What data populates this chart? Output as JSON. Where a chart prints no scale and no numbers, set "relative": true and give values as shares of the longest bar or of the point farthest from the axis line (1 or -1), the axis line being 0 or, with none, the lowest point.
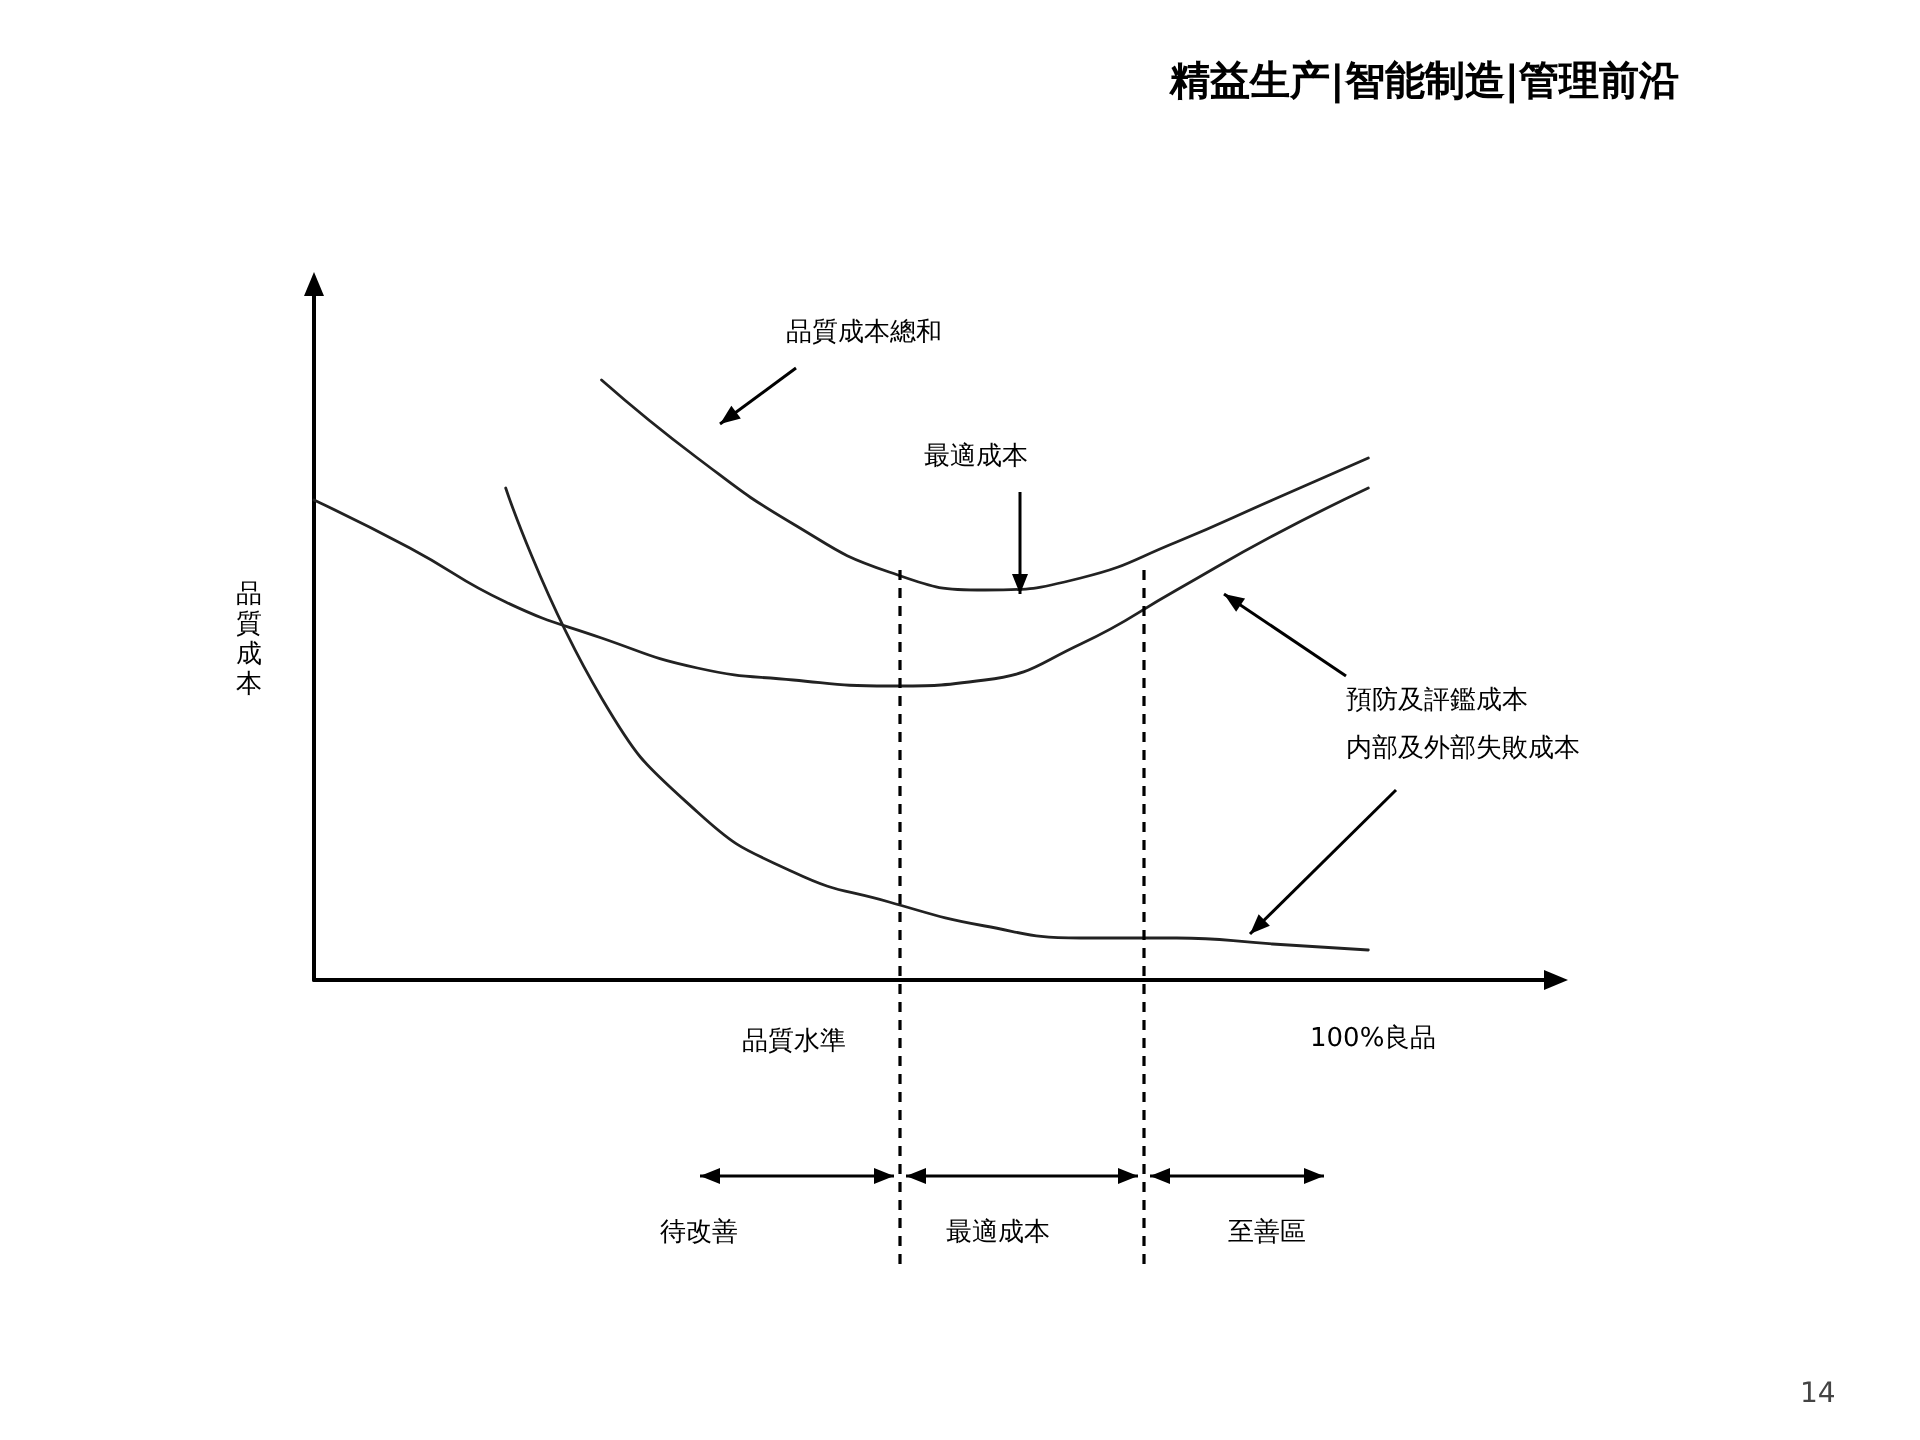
{
  "chart_data": {
    "type": "line",
    "relative": true,
    "xlabel": "品質水準",
    "ylabel": "品質成本",
    "categories": [
      null,
      null,
      null,
      null,
      null,
      null,
      null,
      null,
      null,
      null,
      null,
      null
    ],
    "series": [
      {
        "color": "#222222",
        "values": [
          0.8,
          0.72,
          0.63,
          0.57,
          0.52,
          0.5,
          0.49,
          0.5,
          0.56,
          0.65,
          0.74,
          0.82
        ]
      },
      {
        "color": "#222222",
        "values": [
          null,
          null,
          0.82,
          0.47,
          0.28,
          0.18,
          0.13,
          0.09,
          0.07,
          0.07,
          0.06,
          0.05
        ]
      },
      {
        "color": "#222222",
        "values": [
          null,
          null,
          null,
          1,
          0.87,
          0.76,
          0.68,
          0.65,
          0.67,
          0.73,
          0.8,
          0.87
        ]
      }
    ],
    "annotations": [
      "品質成本總和",
      "最適成本",
      "預防及評鑑成本",
      "内部及外部失敗成本",
      "100%良品",
      "待改善",
      "最適成本",
      "至善區",
      "精益生产|智能制造|管理前沿",
      "14"
    ],
    "marker": "none",
    "line_style": "solid",
    "grid": false
  }
}
